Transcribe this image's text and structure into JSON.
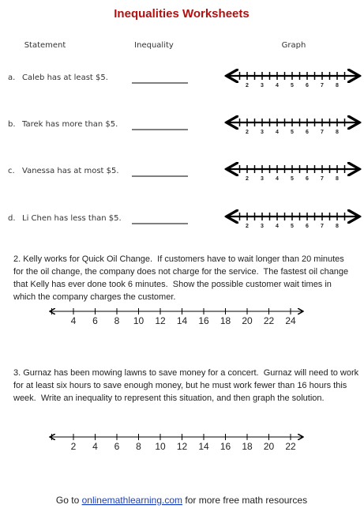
{
  "header": {
    "title": "Inequalities Worksheets"
  },
  "columns": [
    "Statement",
    "Inequality",
    "Graph"
  ],
  "rows": [
    {
      "letter": "a.",
      "statement": "Caleb has at least $5."
    },
    {
      "letter": "b.",
      "statement": "Tarek has more than $5."
    },
    {
      "letter": "c.",
      "statement": "Vanessa has at most $5."
    },
    {
      "letter": "d.",
      "statement": "Li Chen has less than $5."
    }
  ],
  "row_axis": [
    2,
    3,
    4,
    5,
    6,
    7,
    8
  ],
  "problems": [
    {
      "lines": [
        "2. Kelly works for Quick Oil Change.  If customers have to wait longer than 20 minutes",
        "for the oil change, the company does not charge for the service.  The fastest oil change",
        "that Kelly has ever done took 6 minutes.  Show the possible customer wait times in",
        "which the company charges the customer."
      ],
      "axis": [
        4,
        6,
        8,
        10,
        12,
        14,
        16,
        18,
        20,
        22,
        24
      ]
    },
    {
      "lines": [
        "3. Gurnaz has been mowing lawns to save money for a concert.  Gurnaz will need to work",
        "for at least six hours to save enough money, but he must work fewer than 16 hours this",
        "week.  Write an inequality to represent this situation, and then graph the solution."
      ],
      "axis": [
        2,
        4,
        6,
        8,
        10,
        12,
        14,
        16,
        18,
        20,
        22
      ]
    }
  ],
  "footer": {
    "before": "Go to",
    "link": "onlinemathlearning.com",
    "after": "for more free math resources"
  }
}
